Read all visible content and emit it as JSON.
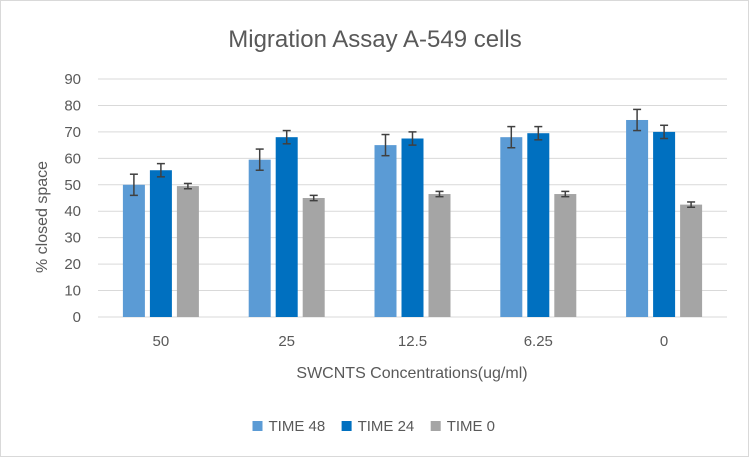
{
  "chart_data": {
    "type": "bar",
    "title": "Migration Assay A-549 cells",
    "xlabel": "SWCNTS Concentrations(ug/ml)",
    "ylabel": "% closed space",
    "categories": [
      "50",
      "25",
      "12.5",
      "6.25",
      "0"
    ],
    "ylim": [
      0,
      90
    ],
    "yticks": [
      0,
      10,
      20,
      30,
      40,
      50,
      60,
      70,
      80,
      90
    ],
    "grid": true,
    "legend_position": "bottom",
    "series": [
      {
        "name": "TIME 48",
        "color": "#5b9bd5",
        "values": [
          50,
          59.5,
          65,
          68,
          74.5
        ],
        "error": [
          4,
          4,
          4,
          4,
          4
        ]
      },
      {
        "name": "TIME 24",
        "color": "#0070c0",
        "values": [
          55.5,
          68,
          67.5,
          69.5,
          70
        ],
        "error": [
          2.5,
          2.5,
          2.5,
          2.5,
          2.5
        ]
      },
      {
        "name": "TIME 0",
        "color": "#a5a5a5",
        "values": [
          49.5,
          45,
          46.5,
          46.5,
          42.5
        ],
        "error": [
          1,
          1,
          1,
          1,
          1
        ]
      }
    ]
  }
}
